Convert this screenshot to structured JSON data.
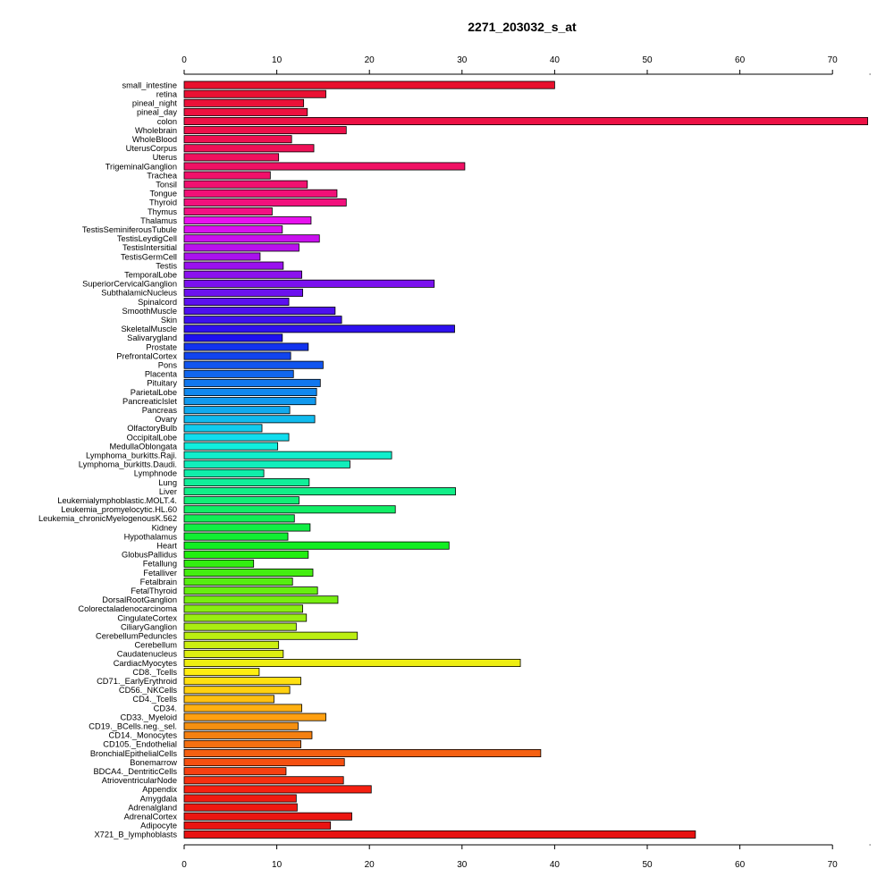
{
  "chart_data": {
    "type": "bar",
    "orientation": "horizontal",
    "title": "2271_203032_s_at",
    "xlabel": "",
    "ylabel": "",
    "xlim": [
      0,
      74
    ],
    "ticks": [
      0,
      10,
      20,
      30,
      40,
      50,
      60,
      70
    ],
    "tick_labels": [
      "0",
      "10",
      "20",
      "30",
      "40",
      "50",
      "60",
      "70"
    ],
    "grid": false,
    "axes": [
      "top",
      "bottom"
    ],
    "categories": [
      "small_intestine",
      "retina",
      "pineal_night",
      "pineal_day",
      "colon",
      "Wholebrain",
      "WholeBlood",
      "UterusCorpus",
      "Uterus",
      "TrigeminalGanglion",
      "Trachea",
      "Tonsil",
      "Tongue",
      "Thyroid",
      "Thymus",
      "Thalamus",
      "TestisSeminiferousTubule",
      "TestisLeydigCell",
      "TestisIntersitial",
      "TestisGermCell",
      "Testis",
      "TemporalLobe",
      "SuperiorCervicalGanglion",
      "SubthalamicNucleus",
      "Spinalcord",
      "SmoothMuscle",
      "Skin",
      "SkeletalMuscle",
      "Salivarygland",
      "Prostate",
      "PrefrontalCortex",
      "Pons",
      "Placenta",
      "Pituitary",
      "ParietalLobe",
      "PancreaticIslet",
      "Pancreas",
      "Ovary",
      "OlfactoryBulb",
      "OccipitalLobe",
      "MedullaOblongata",
      "Lymphoma_burkitts.Raji.",
      "Lymphoma_burkitts.Daudi.",
      "Lymphnode",
      "Lung",
      "Liver",
      "Leukemialymphoblastic.MOLT.4.",
      "Leukemia_promyelocytic.HL.60",
      "Leukemia_chronicMyelogenousK.562",
      "Kidney",
      "Hypothalamus",
      "Heart",
      "GlobusPallidus",
      "Fetallung",
      "Fetalliver",
      "Fetalbrain",
      "FetalThyroid",
      "DorsalRootGanglion",
      "Colorectaladenocarcinoma",
      "CingulateCortex",
      "CiliaryGanglion",
      "CerebellumPeduncles",
      "Cerebellum",
      "Caudatenucleus",
      "CardiacMyocytes",
      "CD8._Tcells",
      "CD71._EarlyErythroid",
      "CD56._NKCells",
      "CD4._Tcells",
      "CD34.",
      "CD33._Myeloid",
      "CD19._BCells.neg._sel.",
      "CD14._Monocytes",
      "CD105._Endothelial",
      "BronchialEpithelialCells",
      "Bonemarrow",
      "BDCA4._DentriticCells",
      "AtrioventricularNode",
      "Appendix",
      "Amygdala",
      "Adrenalgland",
      "AdrenalCortex",
      "Adipocyte",
      "X721_B_lymphoblasts"
    ],
    "values": [
      40.0,
      15.3,
      12.9,
      13.3,
      73.8,
      17.5,
      11.6,
      14.0,
      10.2,
      30.3,
      9.3,
      13.3,
      16.5,
      17.5,
      9.5,
      13.7,
      10.6,
      14.6,
      12.4,
      8.2,
      10.7,
      12.7,
      27.0,
      12.8,
      11.3,
      16.3,
      17.0,
      29.2,
      10.6,
      13.4,
      11.5,
      15.0,
      11.8,
      14.7,
      14.3,
      14.2,
      11.4,
      14.1,
      8.4,
      11.3,
      10.1,
      22.4,
      17.9,
      8.6,
      13.5,
      29.3,
      12.4,
      22.8,
      11.9,
      13.6,
      11.2,
      28.6,
      13.4,
      7.5,
      13.9,
      11.7,
      14.4,
      16.6,
      12.8,
      13.2,
      12.1,
      18.7,
      10.2,
      10.7,
      36.3,
      8.1,
      12.6,
      11.4,
      9.7,
      12.7,
      15.3,
      12.3,
      13.8,
      12.6,
      38.5,
      17.3,
      11.0,
      17.2,
      20.2,
      12.1,
      12.2,
      18.1,
      15.8,
      55.2
    ],
    "colors": [
      "#e8112d",
      "#ea1133",
      "#eb1139",
      "#ec113f",
      "#ed1145",
      "#ee114b",
      "#ef1151",
      "#ef1157",
      "#f0115e",
      "#f01164",
      "#f1116a",
      "#f11170",
      "#f21177",
      "#f2117d",
      "#f21183",
      "#e811ee",
      "#d811ee",
      "#c911ee",
      "#b911ee",
      "#aa11ee",
      "#9a11ee",
      "#8b11ee",
      "#7b11ee",
      "#6c11ee",
      "#5c11ee",
      "#4d11ee",
      "#3d11ee",
      "#2e11ee",
      "#1e11ee",
      "#1133ee",
      "#1144ee",
      "#1155ee",
      "#1166ee",
      "#1177ee",
      "#1188ee",
      "#1199ee",
      "#11aaee",
      "#11bbee",
      "#11ccee",
      "#11ddee",
      "#11eedd",
      "#11eecc",
      "#11eebb",
      "#11eeaa",
      "#11ee99",
      "#11ee88",
      "#11ee77",
      "#11ee66",
      "#11ee55",
      "#11ee44",
      "#11ee33",
      "#11ee22",
      "#22ee11",
      "#33ee11",
      "#44ee11",
      "#55ee11",
      "#66ee11",
      "#77ee11",
      "#88ee11",
      "#99ee11",
      "#aaee11",
      "#bbee11",
      "#ccee11",
      "#ddee11",
      "#eeee11",
      "#ffee11",
      "#ffe011",
      "#ffd011",
      "#ffc011",
      "#ffb011",
      "#ffa011",
      "#f59011",
      "#f58011",
      "#f57011",
      "#f56011",
      "#f55011",
      "#f54011",
      "#f53011",
      "#f52011",
      "#f01a11",
      "#ee1811",
      "#ec1611",
      "#ea1411",
      "#e81211"
    ]
  }
}
